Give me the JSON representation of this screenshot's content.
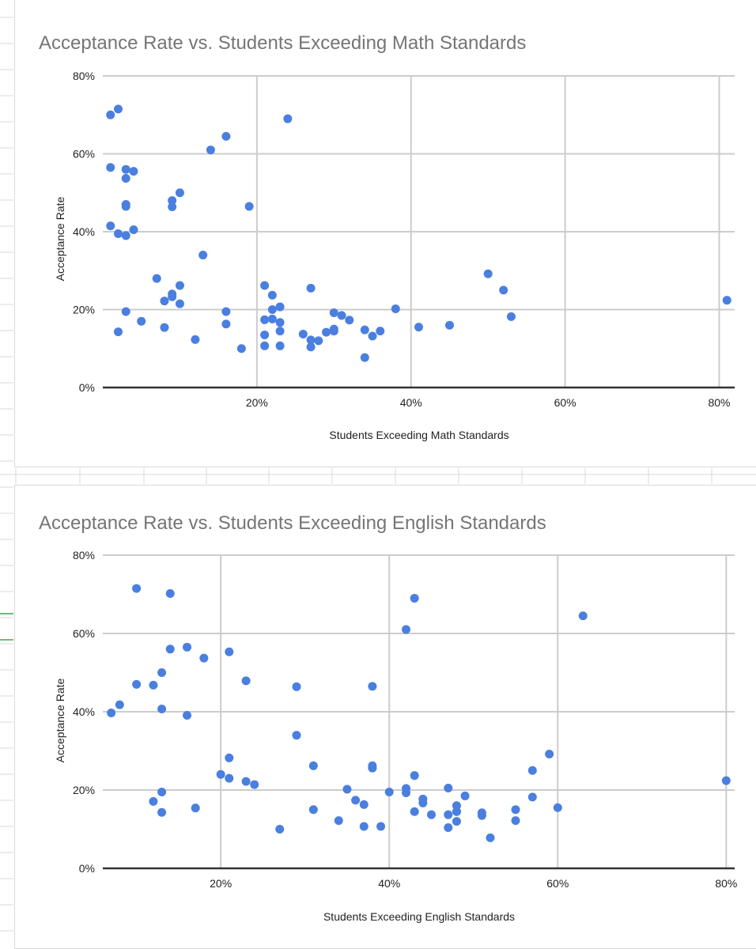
{
  "colors": {
    "point": "#4a7fe0",
    "grid": "#cccccc",
    "axis": "#333333",
    "title": "#757575",
    "sheet_grid": "#d9d9d9",
    "sheet_accent": "#34a853"
  },
  "chart_data": [
    {
      "type": "scatter",
      "title": "Acceptance Rate vs. Students Exceeding Math Standards",
      "xlabel": "Students Exceeding Math Standards",
      "ylabel": "Acceptance Rate",
      "xlim": [
        0,
        0.82
      ],
      "ylim": [
        0,
        0.8
      ],
      "xticks": [
        0.2,
        0.4,
        0.6,
        0.8
      ],
      "yticks": [
        0,
        0.2,
        0.4,
        0.6,
        0.8
      ],
      "xtick_labels": [
        "20%",
        "40%",
        "60%",
        "80%"
      ],
      "ytick_labels": [
        "0%",
        "20%",
        "40%",
        "60%",
        "80%"
      ],
      "grid": true,
      "legend": "none",
      "x": [
        0.01,
        0.02,
        0.01,
        0.03,
        0.04,
        0.03,
        0.03,
        0.03,
        0.01,
        0.02,
        0.03,
        0.04,
        0.03,
        0.02,
        0.05,
        0.07,
        0.08,
        0.09,
        0.09,
        0.09,
        0.1,
        0.1,
        0.1,
        0.09,
        0.08,
        0.12,
        0.13,
        0.14,
        0.16,
        0.16,
        0.16,
        0.18,
        0.19,
        0.21,
        0.22,
        0.23,
        0.22,
        0.21,
        0.22,
        0.23,
        0.23,
        0.21,
        0.21,
        0.23,
        0.24,
        0.26,
        0.27,
        0.27,
        0.28,
        0.27,
        0.29,
        0.3,
        0.3,
        0.3,
        0.31,
        0.32,
        0.34,
        0.35,
        0.36,
        0.34,
        0.38,
        0.41,
        0.45,
        0.5,
        0.52,
        0.53,
        0.81
      ],
      "y": [
        0.7,
        0.715,
        0.565,
        0.56,
        0.555,
        0.537,
        0.47,
        0.465,
        0.415,
        0.395,
        0.39,
        0.405,
        0.195,
        0.143,
        0.17,
        0.28,
        0.222,
        0.24,
        0.233,
        0.48,
        0.5,
        0.262,
        0.215,
        0.464,
        0.154,
        0.123,
        0.34,
        0.61,
        0.645,
        0.195,
        0.163,
        0.1,
        0.465,
        0.262,
        0.237,
        0.207,
        0.2,
        0.174,
        0.176,
        0.167,
        0.145,
        0.135,
        0.107,
        0.107,
        0.69,
        0.137,
        0.255,
        0.122,
        0.12,
        0.104,
        0.142,
        0.192,
        0.15,
        0.145,
        0.185,
        0.173,
        0.148,
        0.132,
        0.145,
        0.077,
        0.202,
        0.155,
        0.16,
        0.292,
        0.25,
        0.182,
        0.224
      ]
    },
    {
      "type": "scatter",
      "title": "Acceptance Rate vs. Students Exceeding English Standards",
      "xlabel": "Students Exceeding English Standards",
      "ylabel": "Acceptance Rate",
      "xlim": [
        0.06,
        0.81
      ],
      "ylim": [
        0,
        0.8
      ],
      "xticks": [
        0.2,
        0.4,
        0.6,
        0.8
      ],
      "yticks": [
        0,
        0.2,
        0.4,
        0.6,
        0.8
      ],
      "xtick_labels": [
        "20%",
        "40%",
        "60%",
        "80%"
      ],
      "ytick_labels": [
        "0%",
        "20%",
        "40%",
        "60%",
        "80%"
      ],
      "grid": true,
      "legend": "none",
      "x": [
        0.07,
        0.08,
        0.1,
        0.1,
        0.12,
        0.12,
        0.13,
        0.13,
        0.13,
        0.13,
        0.14,
        0.14,
        0.16,
        0.16,
        0.17,
        0.18,
        0.2,
        0.21,
        0.21,
        0.21,
        0.23,
        0.23,
        0.24,
        0.27,
        0.29,
        0.29,
        0.31,
        0.31,
        0.34,
        0.35,
        0.36,
        0.37,
        0.37,
        0.38,
        0.38,
        0.38,
        0.39,
        0.4,
        0.42,
        0.42,
        0.42,
        0.43,
        0.43,
        0.43,
        0.44,
        0.44,
        0.45,
        0.47,
        0.47,
        0.47,
        0.48,
        0.48,
        0.48,
        0.48,
        0.49,
        0.51,
        0.51,
        0.52,
        0.55,
        0.55,
        0.57,
        0.57,
        0.59,
        0.6,
        0.63,
        0.8
      ],
      "y": [
        0.397,
        0.418,
        0.715,
        0.47,
        0.468,
        0.171,
        0.5,
        0.407,
        0.195,
        0.143,
        0.702,
        0.56,
        0.565,
        0.391,
        0.154,
        0.537,
        0.24,
        0.553,
        0.282,
        0.23,
        0.479,
        0.222,
        0.214,
        0.1,
        0.464,
        0.34,
        0.262,
        0.15,
        0.122,
        0.202,
        0.174,
        0.107,
        0.163,
        0.465,
        0.262,
        0.256,
        0.107,
        0.195,
        0.61,
        0.204,
        0.193,
        0.69,
        0.237,
        0.145,
        0.177,
        0.167,
        0.137,
        0.205,
        0.137,
        0.104,
        0.16,
        0.145,
        0.12,
        0.145,
        0.185,
        0.142,
        0.135,
        0.078,
        0.15,
        0.122,
        0.25,
        0.182,
        0.292,
        0.155,
        0.645,
        0.224
      ]
    }
  ]
}
